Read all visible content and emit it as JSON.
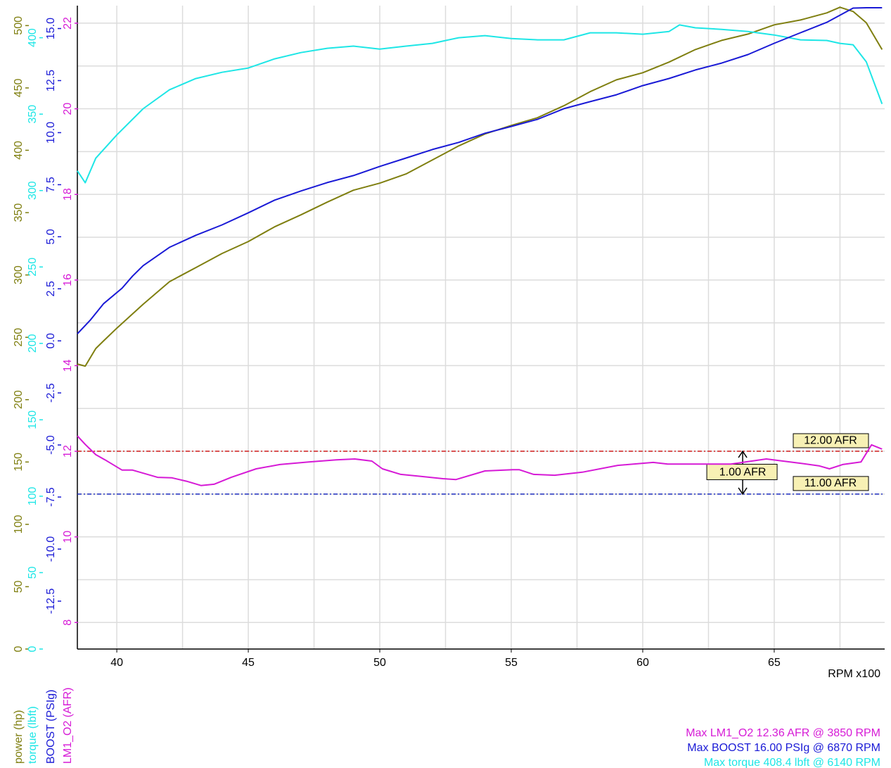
{
  "chart_data": {
    "type": "line",
    "xlabel": "RPM x100",
    "xlim": [
      38.5,
      69.2
    ],
    "xticks": [
      40,
      45,
      50,
      55,
      60,
      65
    ],
    "xminor": [
      42.5,
      47.5,
      52.5,
      57.5,
      62.5,
      67.5
    ],
    "grid": true,
    "axes": {
      "power": {
        "label": "power (hp)",
        "color": "#7f7f10",
        "ylim": [
          0,
          516
        ],
        "yticks": [
          0,
          50,
          100,
          150,
          200,
          250,
          300,
          350,
          400,
          450,
          500
        ]
      },
      "torque": {
        "label": "torque (lbft)",
        "color": "#1ee6e6",
        "ylim": [
          0,
          421
        ],
        "yticks": [
          0,
          50,
          100,
          150,
          200,
          250,
          300,
          350,
          400
        ]
      },
      "boost": {
        "label": "BOOST (PSIg)",
        "color": "#1a1ad6",
        "ylim": [
          -14.8,
          16.1
        ],
        "yticks": [
          {
            "value": -12.5,
            "label": "-12.5"
          },
          {
            "value": -10,
            "label": "-10.0"
          },
          -7.5,
          {
            "value": -5,
            "label": "-5.0"
          },
          -2.5,
          {
            "value": 0,
            "label": "0.0"
          },
          2.5,
          {
            "value": 5,
            "label": "5.0"
          },
          7.5,
          {
            "value": 10,
            "label": "10.0"
          },
          12.5,
          {
            "value": 15,
            "label": "15.0"
          }
        ]
      },
      "afr": {
        "label": "LM1_O2 (AFR)",
        "color": "#d61ad6",
        "ylim": [
          7.38,
          22.41
        ],
        "yticks": [
          8,
          10,
          12,
          14,
          16,
          18,
          20,
          22
        ],
        "yminor": [
          9,
          11,
          13,
          15,
          17,
          19,
          21
        ]
      }
    },
    "series": [
      {
        "axis": "power",
        "color": "#7f7f10",
        "x": [
          38.5,
          38.8,
          39.2,
          39.5,
          40,
          41,
          42,
          43,
          44,
          45,
          46,
          47,
          48,
          49,
          50,
          51,
          52,
          53,
          54,
          55,
          56,
          57,
          58,
          59,
          60,
          61,
          62,
          63,
          64,
          65,
          66,
          67,
          67.5,
          68,
          68.5,
          69.1
        ],
        "values": [
          228.6,
          226.9,
          241,
          247.2,
          257.3,
          276.5,
          294.6,
          305.9,
          317.2,
          326.8,
          338.6,
          348.2,
          358.4,
          368,
          373.6,
          381,
          392.2,
          403.5,
          413.1,
          419.9,
          426.1,
          435.7,
          447,
          456.5,
          462.2,
          470.7,
          480.8,
          488.1,
          493.2,
          500.6,
          504.5,
          510.2,
          514.7,
          511.3,
          502.3,
          480.8
        ]
      },
      {
        "axis": "torque",
        "color": "#1ee6e6",
        "x": [
          38.5,
          38.8,
          39.2,
          40,
          41,
          42,
          43,
          44,
          45,
          46,
          47,
          48,
          49,
          50,
          51,
          52,
          53,
          54,
          55,
          56,
          57,
          58,
          59,
          60,
          61,
          61.4,
          62,
          63,
          64,
          65,
          66,
          67,
          67.5,
          68,
          68.5,
          69.1
        ],
        "values": [
          312.9,
          305.1,
          321.2,
          336.4,
          353.5,
          365.9,
          373.3,
          377.4,
          380.2,
          386.2,
          390.3,
          393.1,
          394.5,
          392.6,
          394.5,
          396.3,
          400,
          401.4,
          399.5,
          398.6,
          398.6,
          403.2,
          403.2,
          402.3,
          404.1,
          408.4,
          406.5,
          405.5,
          404.1,
          401.8,
          398.6,
          398.2,
          396.3,
          395.4,
          384.3,
          356.7
        ]
      },
      {
        "axis": "boost",
        "color": "#1a1ad6",
        "x": [
          38.5,
          39,
          39.5,
          40.2,
          40.6,
          41,
          42,
          43,
          44,
          45,
          46,
          47,
          48,
          49,
          50,
          51,
          52,
          53,
          54,
          55,
          56,
          57,
          58,
          59,
          60,
          61,
          62,
          63,
          64,
          65,
          66,
          67,
          67.5,
          68,
          68.5,
          69.1
        ],
        "values": [
          0.34,
          1.01,
          1.79,
          2.53,
          3.11,
          3.61,
          4.49,
          5.07,
          5.57,
          6.15,
          6.76,
          7.2,
          7.6,
          7.94,
          8.38,
          8.78,
          9.19,
          9.53,
          9.97,
          10.3,
          10.64,
          11.15,
          11.49,
          11.82,
          12.26,
          12.6,
          13.01,
          13.34,
          13.75,
          14.29,
          14.8,
          15.3,
          15.64,
          15.98,
          16,
          16
        ]
      },
      {
        "axis": "afr",
        "color": "#d61ad6",
        "x": [
          38.5,
          38.8,
          39.2,
          39.55,
          40.2,
          40.6,
          41.55,
          42.1,
          42.65,
          43.2,
          43.7,
          44.35,
          45.3,
          46.2,
          47.3,
          48.35,
          49.05,
          49.7,
          50.1,
          50.8,
          51.6,
          52.4,
          52.9,
          54,
          55.05,
          55.3,
          55.85,
          56.65,
          57.7,
          59.05,
          60.4,
          60.95,
          62.3,
          63.35,
          64.7,
          66,
          66.7,
          67.1,
          67.6,
          68.3,
          68.7,
          69.1
        ],
        "values": [
          12.36,
          12.16,
          11.92,
          11.8,
          11.56,
          11.56,
          11.39,
          11.38,
          11.3,
          11.2,
          11.23,
          11.39,
          11.59,
          11.69,
          11.75,
          11.8,
          11.82,
          11.77,
          11.59,
          11.46,
          11.41,
          11.36,
          11.34,
          11.54,
          11.57,
          11.57,
          11.46,
          11.44,
          11.51,
          11.67,
          11.74,
          11.7,
          11.7,
          11.7,
          11.82,
          11.72,
          11.66,
          11.59,
          11.69,
          11.75,
          12.15,
          12.05
        ]
      }
    ],
    "hlines": [
      {
        "axis": "afr",
        "y": 12,
        "color": "#d42020",
        "label": "12.00 AFR"
      },
      {
        "axis": "afr",
        "y": 11,
        "color": "#2030c0",
        "label": "11.00 AFR"
      }
    ],
    "delta": {
      "axis": "afr",
      "x": 63.8,
      "from": 11,
      "to": 12,
      "label": "1.00 AFR"
    },
    "notes": [
      {
        "text": "Max LM1_O2 12.36 AFR @ 3850 RPM",
        "color": "#d61ad6"
      },
      {
        "text": "Max BOOST 16.00 PSIg @ 6870 RPM",
        "color": "#1a1ad6"
      },
      {
        "text": "Max torque 408.4 lbft @ 6140 RPM",
        "color": "#1ee6e6"
      }
    ]
  }
}
